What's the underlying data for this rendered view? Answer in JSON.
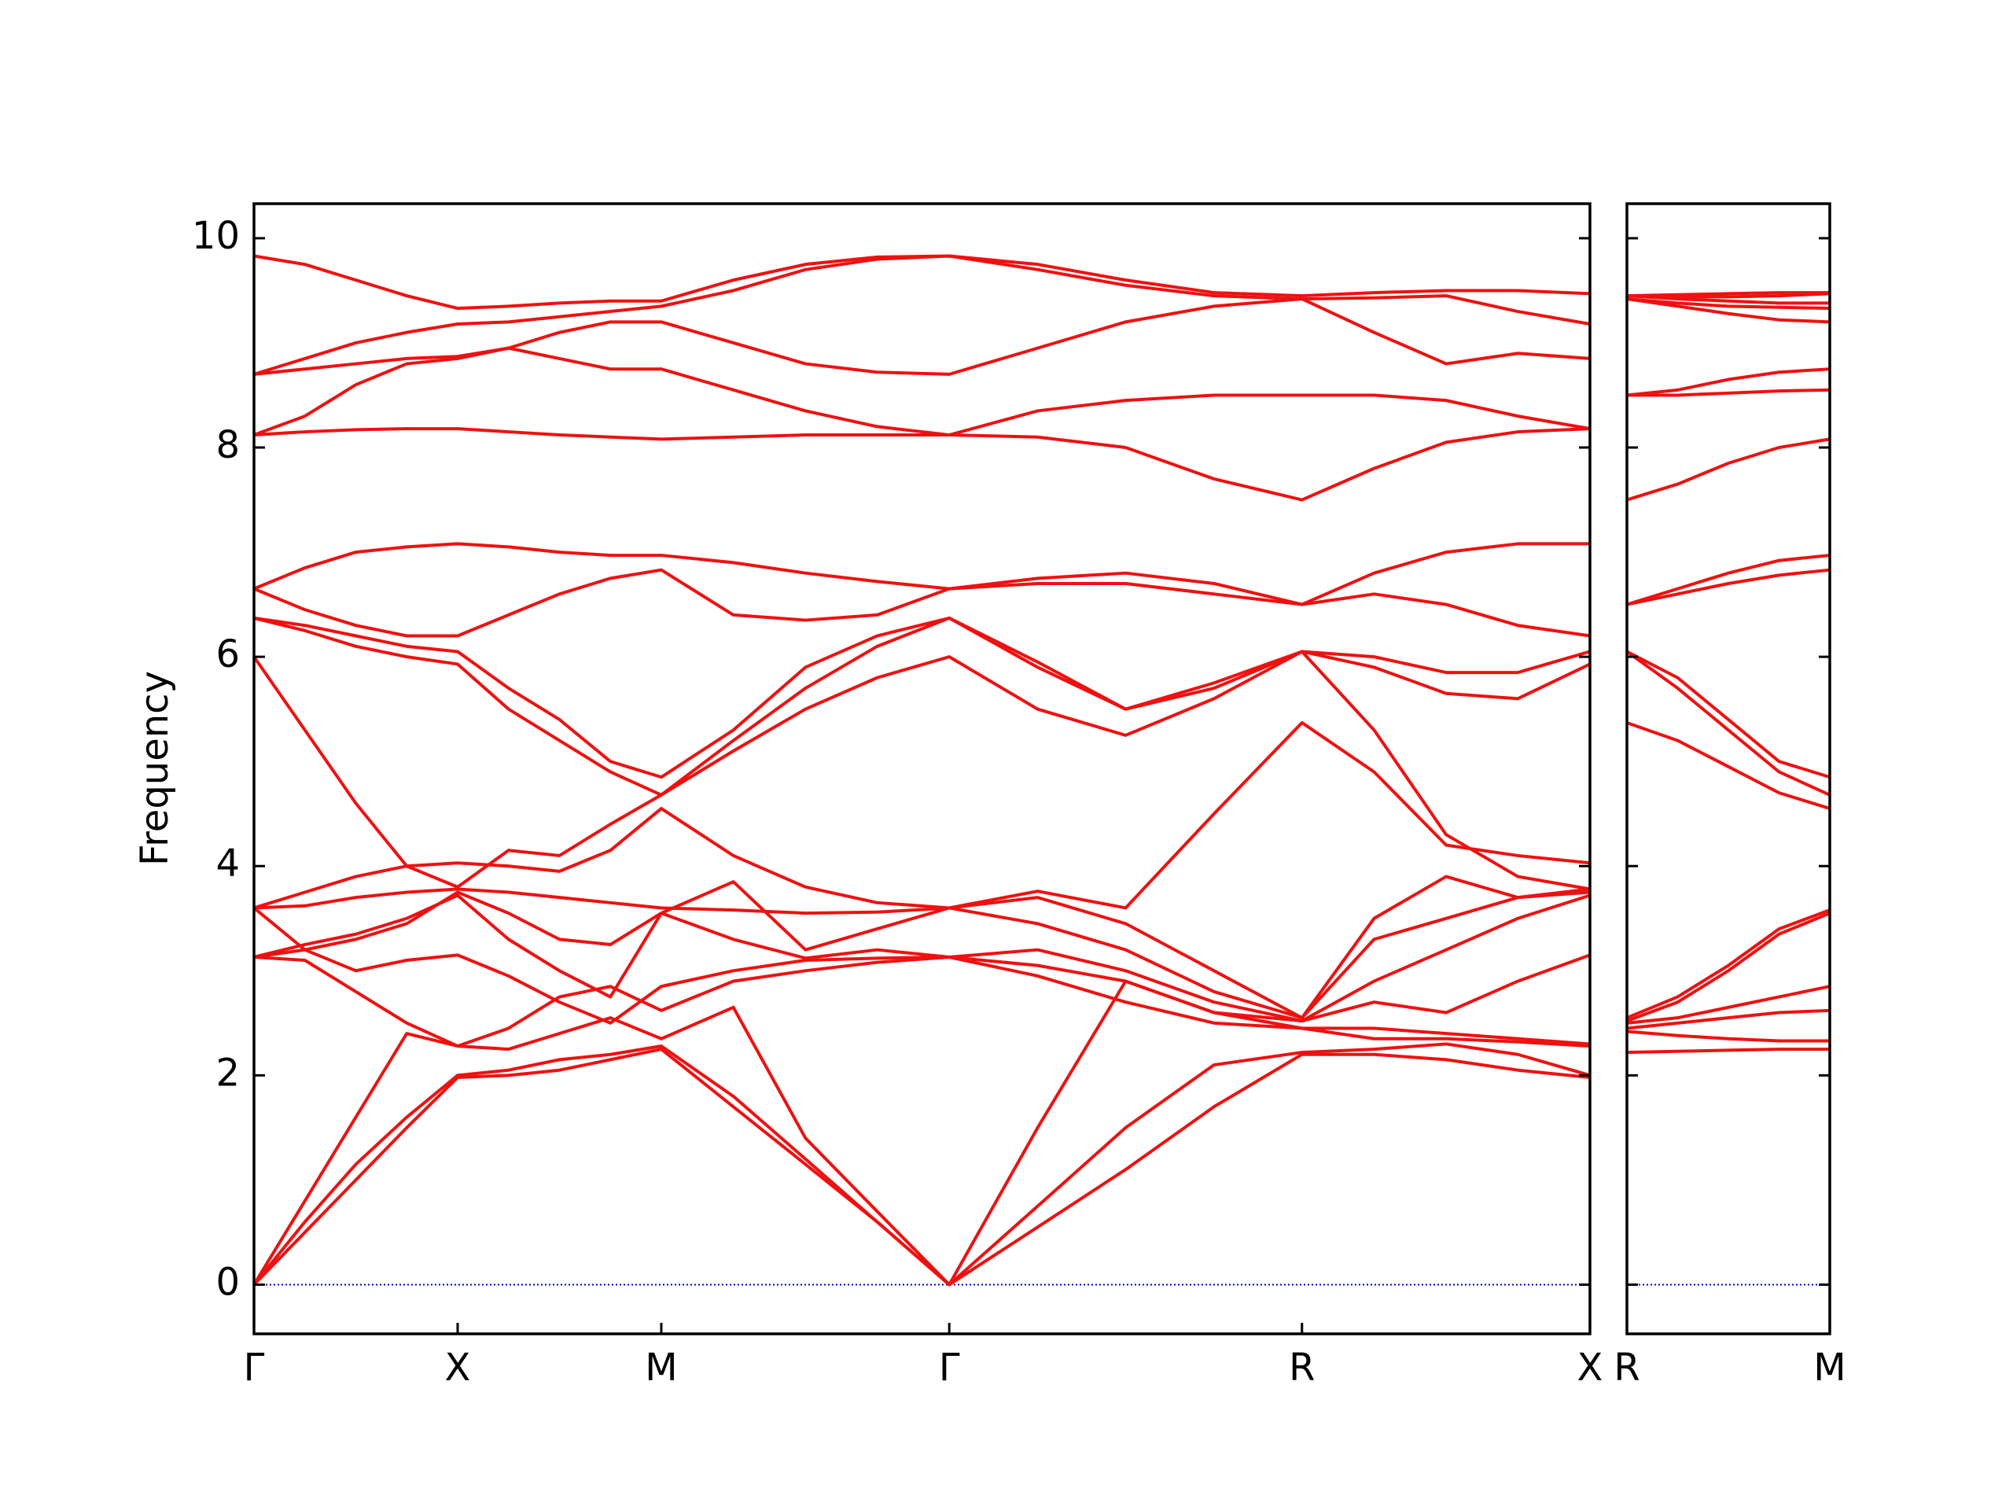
{
  "chart_data": [
    {
      "type": "line",
      "ylabel": "Frequency",
      "color": "#ee1111",
      "baseline": 0,
      "baseline_color": "#0000cc",
      "xlim": [
        0,
        3.28
      ],
      "ylim": [
        -0.47,
        10.33
      ],
      "yticks": [
        0,
        2,
        4,
        6,
        8,
        10
      ],
      "xticks": [
        {
          "value": 0,
          "label": "Γ"
        },
        {
          "value": 0.5,
          "label": "X"
        },
        {
          "value": 1.0,
          "label": "M"
        },
        {
          "value": 1.707,
          "label": "Γ"
        },
        {
          "value": 2.573,
          "label": "R"
        },
        {
          "value": 3.28,
          "label": "X"
        }
      ],
      "x": [
        0,
        0.125,
        0.25,
        0.375,
        0.5,
        0.625,
        0.75,
        0.875,
        1.0,
        1.177,
        1.354,
        1.53,
        1.707,
        1.924,
        2.14,
        2.357,
        2.573,
        2.75,
        2.927,
        3.103,
        3.28
      ],
      "series": [
        {
          "values": [
            0,
            0.5,
            1.0,
            1.5,
            1.98,
            2.0,
            2.05,
            2.15,
            2.25,
            1.7,
            1.15,
            0.6,
            0,
            0.55,
            1.1,
            1.7,
            2.2,
            2.2,
            2.15,
            2.05,
            1.98
          ]
        },
        {
          "values": [
            0,
            0.6,
            1.15,
            1.6,
            2.0,
            2.05,
            2.15,
            2.2,
            2.28,
            1.8,
            1.2,
            0.6,
            0,
            0.75,
            1.5,
            2.1,
            2.22,
            2.25,
            2.3,
            2.2,
            2.0
          ]
        },
        {
          "values": [
            0,
            0.8,
            1.6,
            2.4,
            2.28,
            2.25,
            2.4,
            2.55,
            2.35,
            2.65,
            1.4,
            0.7,
            0,
            1.5,
            2.9,
            2.6,
            2.45,
            2.35,
            2.35,
            2.32,
            2.28
          ]
        },
        {
          "values": [
            3.13,
            3.1,
            2.8,
            2.5,
            2.28,
            2.45,
            2.75,
            2.85,
            2.62,
            2.9,
            3.0,
            3.08,
            3.13,
            2.95,
            2.7,
            2.5,
            2.45,
            2.45,
            2.4,
            2.35,
            2.3
          ]
        },
        {
          "values": [
            3.13,
            3.2,
            3.0,
            3.1,
            3.15,
            2.95,
            2.7,
            2.5,
            2.85,
            3.0,
            3.1,
            3.12,
            3.13,
            3.05,
            2.9,
            2.6,
            2.52,
            2.7,
            2.6,
            2.9,
            3.15
          ]
        },
        {
          "values": [
            3.13,
            3.25,
            3.35,
            3.5,
            3.72,
            3.3,
            3.0,
            2.75,
            3.55,
            3.3,
            3.12,
            3.2,
            3.13,
            3.2,
            3.0,
            2.7,
            2.52,
            2.9,
            3.2,
            3.5,
            3.72
          ]
        },
        {
          "values": [
            3.6,
            3.2,
            3.3,
            3.45,
            3.75,
            3.55,
            3.3,
            3.25,
            3.55,
            3.85,
            3.2,
            3.4,
            3.6,
            3.45,
            3.2,
            2.8,
            2.55,
            3.3,
            3.5,
            3.7,
            3.75
          ]
        },
        {
          "values": [
            3.6,
            3.62,
            3.7,
            3.75,
            3.78,
            3.75,
            3.7,
            3.65,
            3.6,
            3.58,
            3.55,
            3.56,
            3.6,
            3.7,
            3.45,
            3.0,
            2.55,
            3.5,
            3.9,
            3.7,
            3.78
          ]
        },
        {
          "values": [
            3.6,
            3.75,
            3.9,
            4.0,
            4.03,
            4.0,
            3.95,
            4.15,
            4.55,
            4.1,
            3.8,
            3.65,
            3.6,
            3.76,
            3.6,
            4.5,
            5.37,
            4.9,
            4.2,
            4.1,
            4.03
          ]
        },
        {
          "values": [
            6.0,
            5.3,
            4.6,
            4.0,
            3.8,
            4.15,
            4.1,
            4.4,
            4.68,
            5.1,
            5.5,
            5.8,
            6.0,
            5.5,
            5.25,
            5.6,
            6.05,
            5.3,
            4.3,
            3.9,
            3.78
          ]
        },
        {
          "values": [
            6.37,
            6.25,
            6.1,
            6.0,
            5.93,
            5.5,
            5.2,
            4.9,
            4.68,
            5.2,
            5.7,
            6.1,
            6.37,
            5.9,
            5.5,
            5.7,
            6.05,
            5.9,
            5.65,
            5.6,
            5.93
          ]
        },
        {
          "values": [
            6.37,
            6.3,
            6.2,
            6.1,
            6.05,
            5.7,
            5.4,
            5.0,
            4.85,
            5.3,
            5.9,
            6.2,
            6.37,
            5.95,
            5.5,
            5.75,
            6.05,
            6.0,
            5.85,
            5.85,
            6.05
          ]
        },
        {
          "values": [
            6.65,
            6.45,
            6.3,
            6.2,
            6.2,
            6.4,
            6.6,
            6.75,
            6.83,
            6.4,
            6.35,
            6.4,
            6.65,
            6.75,
            6.8,
            6.7,
            6.5,
            6.6,
            6.5,
            6.3,
            6.2
          ]
        },
        {
          "values": [
            6.65,
            6.85,
            7.0,
            7.05,
            7.08,
            7.05,
            7.0,
            6.97,
            6.97,
            6.9,
            6.8,
            6.72,
            6.65,
            6.7,
            6.7,
            6.6,
            6.5,
            6.8,
            7.0,
            7.08,
            7.08
          ]
        },
        {
          "values": [
            8.12,
            8.15,
            8.17,
            8.18,
            8.18,
            8.15,
            8.12,
            8.1,
            8.08,
            8.1,
            8.12,
            8.12,
            8.12,
            8.1,
            8.0,
            7.7,
            7.5,
            7.8,
            8.05,
            8.15,
            8.18
          ]
        },
        {
          "values": [
            8.12,
            8.3,
            8.6,
            8.8,
            8.85,
            8.95,
            8.85,
            8.75,
            8.75,
            8.55,
            8.35,
            8.2,
            8.12,
            8.35,
            8.45,
            8.5,
            8.5,
            8.5,
            8.45,
            8.3,
            8.18
          ]
        },
        {
          "values": [
            8.7,
            8.75,
            8.8,
            8.85,
            8.87,
            8.95,
            9.1,
            9.2,
            9.2,
            9.0,
            8.8,
            8.72,
            8.7,
            8.95,
            9.2,
            9.35,
            9.42,
            9.1,
            8.8,
            8.9,
            8.85
          ]
        },
        {
          "values": [
            8.7,
            8.85,
            9.0,
            9.1,
            9.18,
            9.2,
            9.25,
            9.3,
            9.35,
            9.5,
            9.7,
            9.8,
            9.83,
            9.7,
            9.55,
            9.45,
            9.42,
            9.43,
            9.45,
            9.3,
            9.18
          ]
        },
        {
          "values": [
            9.83,
            9.75,
            9.6,
            9.45,
            9.33,
            9.35,
            9.38,
            9.4,
            9.4,
            9.6,
            9.75,
            9.82,
            9.83,
            9.75,
            9.6,
            9.48,
            9.45,
            9.48,
            9.5,
            9.5,
            9.47
          ]
        }
      ]
    },
    {
      "type": "line",
      "color": "#ee1111",
      "baseline": 0,
      "baseline_color": "#0000cc",
      "xlim": [
        0,
        0.5
      ],
      "ylim": [
        -0.47,
        10.33
      ],
      "yticks": [
        0,
        2,
        4,
        6,
        8,
        10
      ],
      "xticks": [
        {
          "value": 0,
          "label": "R"
        },
        {
          "value": 0.5,
          "label": "M"
        }
      ],
      "x": [
        0,
        0.125,
        0.25,
        0.375,
        0.5
      ],
      "series": [
        {
          "values": [
            2.22,
            2.23,
            2.24,
            2.25,
            2.25
          ]
        },
        {
          "values": [
            2.42,
            2.38,
            2.35,
            2.33,
            2.33
          ]
        },
        {
          "values": [
            2.45,
            2.5,
            2.55,
            2.6,
            2.62
          ]
        },
        {
          "values": [
            2.5,
            2.55,
            2.65,
            2.75,
            2.85
          ]
        },
        {
          "values": [
            2.52,
            2.7,
            3.0,
            3.35,
            3.55
          ]
        },
        {
          "values": [
            2.55,
            2.75,
            3.05,
            3.4,
            3.58
          ]
        },
        {
          "values": [
            5.37,
            5.2,
            4.95,
            4.7,
            4.55
          ]
        },
        {
          "values": [
            6.05,
            5.7,
            5.3,
            4.9,
            4.68
          ]
        },
        {
          "values": [
            6.05,
            5.8,
            5.4,
            5.0,
            4.85
          ]
        },
        {
          "values": [
            6.5,
            6.6,
            6.7,
            6.78,
            6.83
          ]
        },
        {
          "values": [
            6.5,
            6.65,
            6.8,
            6.92,
            6.97
          ]
        },
        {
          "values": [
            7.5,
            7.65,
            7.85,
            8.0,
            8.08
          ]
        },
        {
          "values": [
            8.5,
            8.5,
            8.52,
            8.54,
            8.55
          ]
        },
        {
          "values": [
            8.5,
            8.55,
            8.65,
            8.72,
            8.75
          ]
        },
        {
          "values": [
            9.42,
            9.35,
            9.28,
            9.22,
            9.2
          ]
        },
        {
          "values": [
            9.42,
            9.38,
            9.35,
            9.34,
            9.33
          ]
        },
        {
          "values": [
            9.45,
            9.42,
            9.4,
            9.38,
            9.38
          ]
        },
        {
          "values": [
            9.45,
            9.44,
            9.44,
            9.45,
            9.47
          ]
        },
        {
          "values": [
            9.45,
            9.46,
            9.47,
            9.48,
            9.48
          ]
        }
      ]
    }
  ]
}
